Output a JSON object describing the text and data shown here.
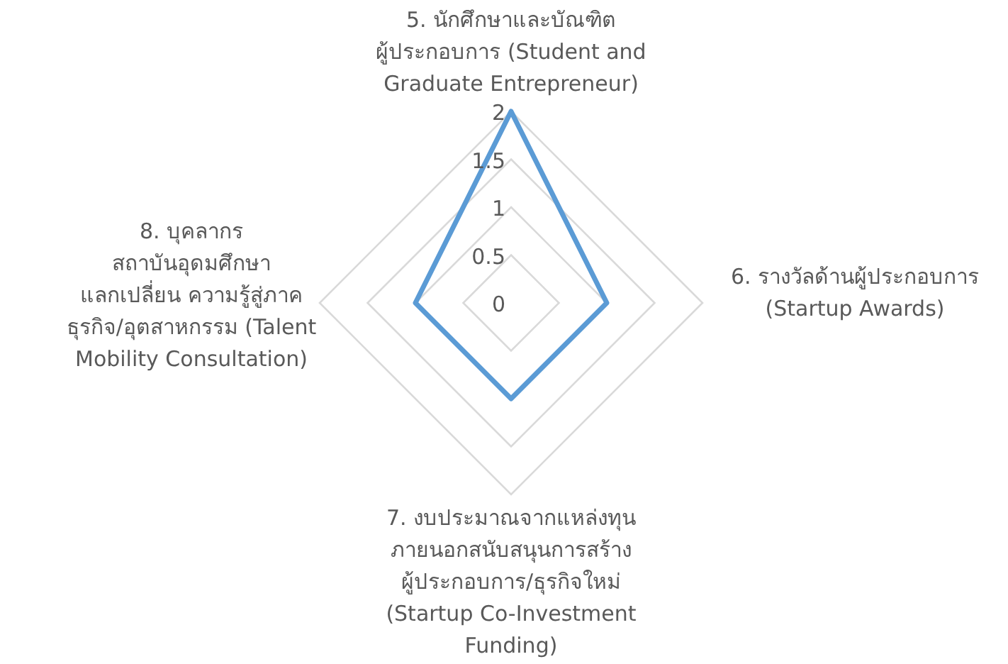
{
  "chart_data": {
    "type": "radar",
    "categories": [
      "5. นักศึกษาและบัณฑิต\nผู้ประกอบการ (Student and\nGraduate Entrepreneur)",
      "6. รางวัลด้านผู้ประกอบการ\n(Startup Awards)",
      "7. งบประมาณจากแหล่งทุน\nภายนอกสนับสนุนการสร้าง\nผู้ประกอบการ/ธุรกิจใหม่\n(Startup Co-Investment\nFunding)",
      "8. บุคลากร\nสถาบันอุดมศึกษา\nแลกเปลี่ยน  ความรู้สู่ภาค\nธุรกิจ/อุตสาหกรรม (Talent\nMobility Consultation)"
    ],
    "series": [
      {
        "color": "#5b9bd5",
        "values": [
          2,
          1,
          1,
          1
        ]
      }
    ],
    "ylim": [
      0,
      2
    ],
    "yticks": [
      0,
      0.5,
      1,
      1.5,
      2
    ],
    "grid": true,
    "marker": "none"
  }
}
